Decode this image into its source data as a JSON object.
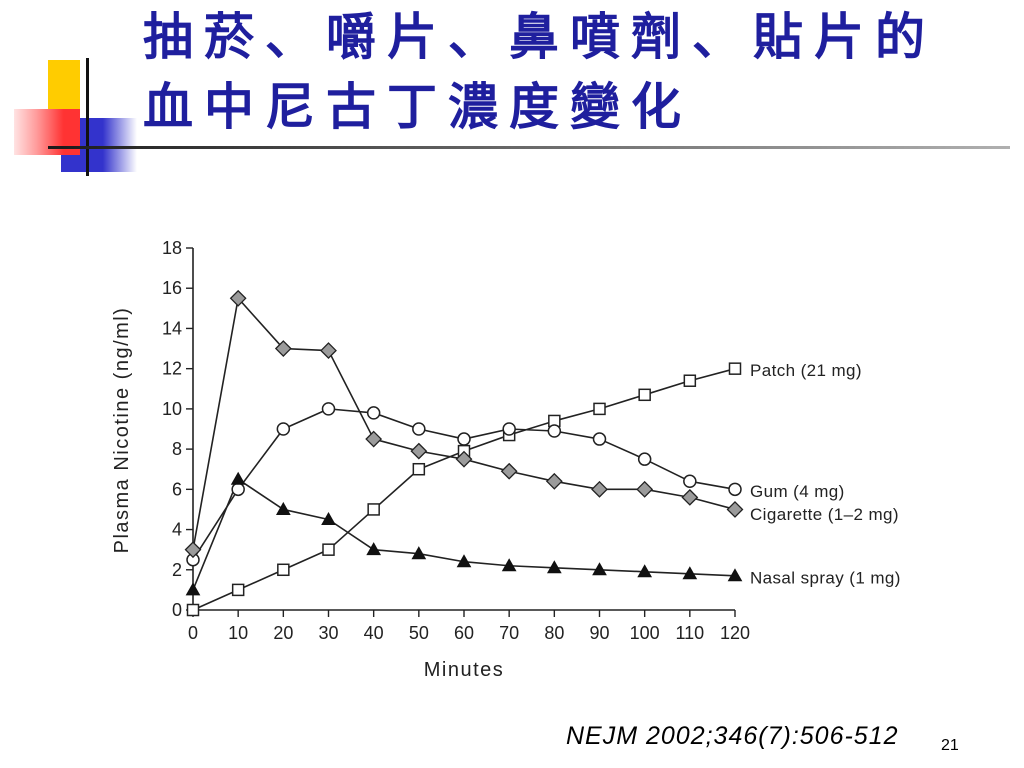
{
  "theme": {
    "title_color": "#1f1f9e",
    "accent_yellow": "#ffcc00",
    "accent_red": "#ff3333",
    "accent_blue": "#3333cc"
  },
  "slide": {
    "title_lines": [
      "抽菸、嚼片、鼻噴劑、貼片的",
      "血中尼古丁濃度變化"
    ],
    "citation": "NEJM 2002;346(7):506-512",
    "page_number": "21"
  },
  "chart_data": {
    "type": "line",
    "xlabel": "Minutes",
    "ylabel": "Plasma Nicotine (ng/ml)",
    "xlim": [
      0,
      120
    ],
    "ylim": [
      0,
      18
    ],
    "xticks": [
      0,
      10,
      20,
      30,
      40,
      50,
      60,
      70,
      80,
      90,
      100,
      110,
      120
    ],
    "yticks": [
      0,
      2,
      4,
      6,
      8,
      10,
      12,
      14,
      16,
      18
    ],
    "grid": false,
    "legend_placement": "right",
    "x": [
      0,
      10,
      20,
      30,
      40,
      50,
      60,
      70,
      80,
      90,
      100,
      110,
      120
    ],
    "series": [
      {
        "name": "Patch (21 mg)",
        "marker": "open-square",
        "values": [
          0,
          1,
          2,
          3,
          5,
          7,
          7.9,
          8.7,
          9.4,
          10,
          10.7,
          11.4,
          12
        ]
      },
      {
        "name": "Gum (4 mg)",
        "marker": "open-circle",
        "values": [
          2.5,
          6,
          9,
          10,
          9.8,
          9,
          8.5,
          9,
          8.9,
          8.5,
          7.5,
          6.4,
          6
        ]
      },
      {
        "name": "Cigarette (1–2 mg)",
        "marker": "gray-diamond",
        "values": [
          3,
          15.5,
          13,
          12.9,
          8.5,
          7.9,
          7.5,
          6.9,
          6.4,
          6,
          6,
          5.6,
          5
        ]
      },
      {
        "name": "Nasal spray (1 mg)",
        "marker": "filled-triangle",
        "values": [
          1,
          6.5,
          5,
          4.5,
          3,
          2.8,
          2.4,
          2.2,
          2.1,
          2,
          1.9,
          1.8,
          1.7
        ]
      }
    ]
  }
}
